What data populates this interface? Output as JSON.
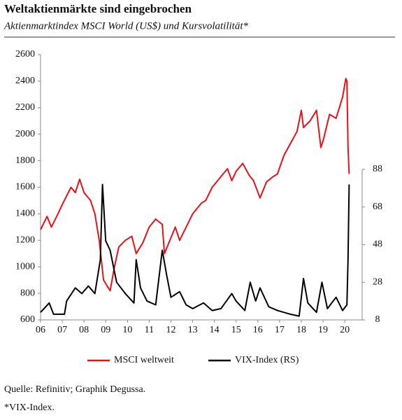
{
  "chart_data": {
    "type": "line",
    "title": "Weltaktienmärkte sind eingebrochen",
    "subtitle": "Aktienmarktindex MSCI World (US$) und Kursvolatilität*",
    "source": "Quelle: Refinitiv; Graphik Degussa.",
    "footnote": "*VIX-Index.",
    "xlim": [
      2006,
      2020.8
    ],
    "xticks": [
      {
        "value": 2006,
        "label": "06"
      },
      {
        "value": 2007,
        "label": "07"
      },
      {
        "value": 2008,
        "label": "08"
      },
      {
        "value": 2009,
        "label": "09"
      },
      {
        "value": 2010,
        "label": "10"
      },
      {
        "value": 2011,
        "label": "11"
      },
      {
        "value": 2012,
        "label": "12"
      },
      {
        "value": 2013,
        "label": "13"
      },
      {
        "value": 2014,
        "label": "14"
      },
      {
        "value": 2015,
        "label": "15"
      },
      {
        "value": 2016,
        "label": "16"
      },
      {
        "value": 2017,
        "label": "17"
      },
      {
        "value": 2018,
        "label": "18"
      },
      {
        "value": 2019,
        "label": "19"
      },
      {
        "value": 2020,
        "label": "20"
      }
    ],
    "ylim": [
      600,
      2600
    ],
    "yticks": [
      600,
      800,
      1000,
      1200,
      1400,
      1600,
      1800,
      2000,
      2200,
      2400,
      2600
    ],
    "y2lim": [
      8,
      149
    ],
    "y2ticks": [
      8,
      28,
      48,
      68,
      88
    ],
    "legend": "bottom",
    "series": [
      {
        "name": "MSCI weltweit",
        "color": "#e8101a",
        "axis": "y",
        "x": [
          2006.0,
          2006.3,
          2006.5,
          2006.8,
          2007.0,
          2007.4,
          2007.6,
          2007.8,
          2008.0,
          2008.3,
          2008.5,
          2008.7,
          2008.9,
          2009.2,
          2009.4,
          2009.6,
          2009.9,
          2010.2,
          2010.4,
          2010.7,
          2011.0,
          2011.3,
          2011.6,
          2011.7,
          2011.9,
          2012.2,
          2012.4,
          2012.7,
          2013.0,
          2013.4,
          2013.6,
          2013.9,
          2014.3,
          2014.6,
          2014.8,
          2015.0,
          2015.3,
          2015.6,
          2015.8,
          2016.1,
          2016.4,
          2016.7,
          2016.9,
          2017.2,
          2017.5,
          2017.8,
          2018.0,
          2018.1,
          2018.4,
          2018.7,
          2018.9,
          2019.0,
          2019.3,
          2019.6,
          2019.9,
          2020.05,
          2020.1,
          2020.15,
          2020.2
        ],
        "values": [
          1280,
          1380,
          1300,
          1400,
          1470,
          1600,
          1560,
          1660,
          1560,
          1500,
          1400,
          1200,
          900,
          820,
          1000,
          1150,
          1200,
          1230,
          1100,
          1180,
          1300,
          1360,
          1320,
          1100,
          1180,
          1300,
          1200,
          1300,
          1400,
          1480,
          1500,
          1600,
          1680,
          1740,
          1650,
          1720,
          1780,
          1690,
          1650,
          1520,
          1640,
          1680,
          1700,
          1840,
          1930,
          2020,
          2180,
          2050,
          2100,
          2180,
          1900,
          1950,
          2150,
          2120,
          2280,
          2420,
          2400,
          1900,
          1700
        ]
      },
      {
        "name": "VIX-Index (RS)",
        "color": "#000000",
        "axis": "y2",
        "x": [
          2006.0,
          2006.4,
          2006.6,
          2007.1,
          2007.2,
          2007.6,
          2007.9,
          2008.2,
          2008.5,
          2008.75,
          2008.85,
          2009.0,
          2009.2,
          2009.5,
          2009.9,
          2010.3,
          2010.4,
          2010.6,
          2010.9,
          2011.3,
          2011.6,
          2011.8,
          2012.0,
          2012.4,
          2012.7,
          2013.0,
          2013.5,
          2013.9,
          2014.3,
          2014.8,
          2015.0,
          2015.4,
          2015.65,
          2015.9,
          2016.1,
          2016.5,
          2016.9,
          2017.5,
          2017.9,
          2018.1,
          2018.3,
          2018.7,
          2018.95,
          2019.2,
          2019.6,
          2019.9,
          2020.1,
          2020.15,
          2020.2
        ],
        "values": [
          12,
          17,
          11,
          11,
          18,
          25,
          22,
          26,
          22,
          40,
          80,
          50,
          45,
          28,
          22,
          17,
          40,
          25,
          18,
          16,
          45,
          32,
          20,
          23,
          16,
          14,
          17,
          13,
          14,
          22,
          18,
          13,
          28,
          18,
          25,
          15,
          13,
          11,
          10,
          30,
          17,
          12,
          28,
          14,
          20,
          13,
          16,
          40,
          80
        ]
      }
    ]
  }
}
